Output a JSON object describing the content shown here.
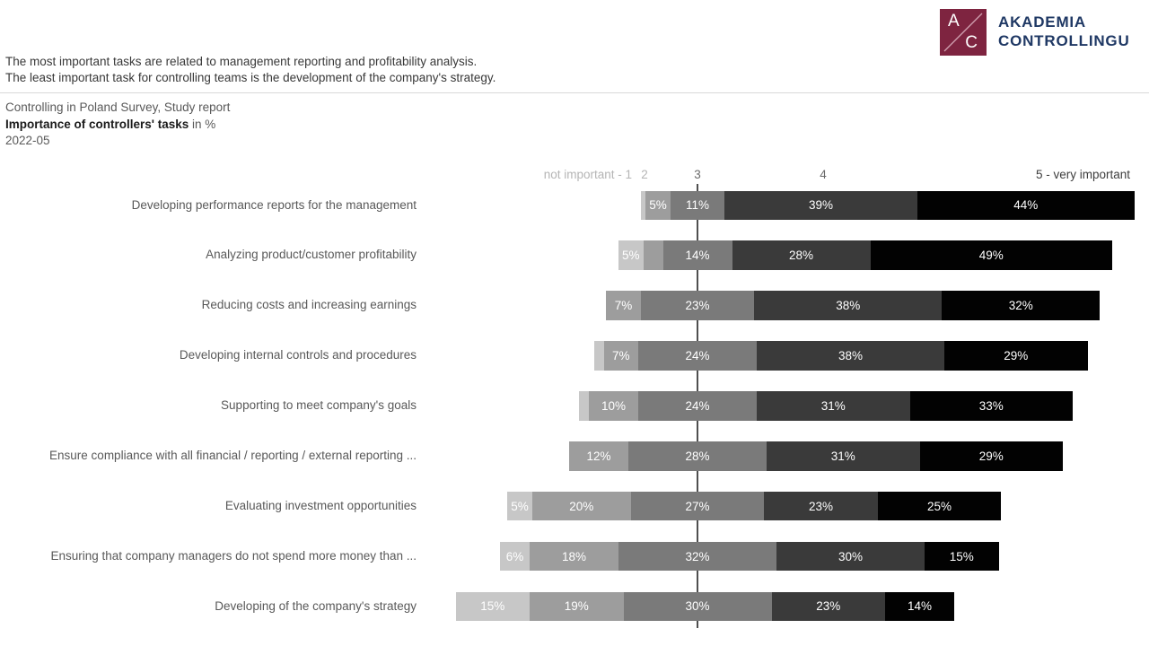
{
  "brand": {
    "logo_letter_top": "A",
    "logo_letter_bottom": "C",
    "name_line1": "AKADEMIA",
    "name_line2": "CONTROLLINGU",
    "logo_bg_color": "#7e2440",
    "name_color": "#1f3864"
  },
  "summary": {
    "line1": "The most important tasks are related to management reporting and profitability analysis.",
    "line2": "The least important task for controlling teams is the development of the company's strategy."
  },
  "title": {
    "line1": "Controlling in Poland Survey, Study report",
    "line2_bold": "Importance of controllers' tasks",
    "line2_rest": " in %",
    "date": "2022-05"
  },
  "chart_data": {
    "type": "bar",
    "subtype": "diverging-stacked-likert-horizontal",
    "title": "Importance of controllers' tasks in %",
    "unit": "%",
    "label_threshold": 5,
    "axis_alignment": "center of rating-3 segment on vertical axis line",
    "scale_labels": [
      "not important - 1",
      "2",
      "3",
      "4",
      "5 - very important"
    ],
    "categories": [
      "Developing performance reports for the management",
      "Analyzing product/customer profitability",
      "Reducing costs and increasing earnings",
      "Developing internal controls and procedures",
      "Supporting to meet company's goals",
      "Ensure compliance with all financial / reporting / external reporting ...",
      "Evaluating investment opportunities",
      "Ensuring that company managers do not spend more money than ...",
      "Developing of the company's strategy"
    ],
    "series": [
      {
        "name": "rating-1-not-important",
        "color": "#c7c7c7",
        "values": [
          1,
          5,
          0,
          2,
          2,
          0,
          5,
          6,
          15
        ]
      },
      {
        "name": "rating-2",
        "color": "#9d9d9d",
        "values": [
          5,
          4,
          7,
          7,
          10,
          12,
          20,
          18,
          19
        ]
      },
      {
        "name": "rating-3",
        "color": "#7a7a7a",
        "values": [
          11,
          14,
          23,
          24,
          24,
          28,
          27,
          32,
          30
        ]
      },
      {
        "name": "rating-4",
        "color": "#3a3a3a",
        "values": [
          39,
          28,
          38,
          38,
          31,
          31,
          23,
          30,
          23
        ]
      },
      {
        "name": "rating-5-very-important",
        "color": "#020202",
        "values": [
          44,
          49,
          32,
          29,
          33,
          29,
          25,
          15,
          14
        ]
      }
    ]
  }
}
